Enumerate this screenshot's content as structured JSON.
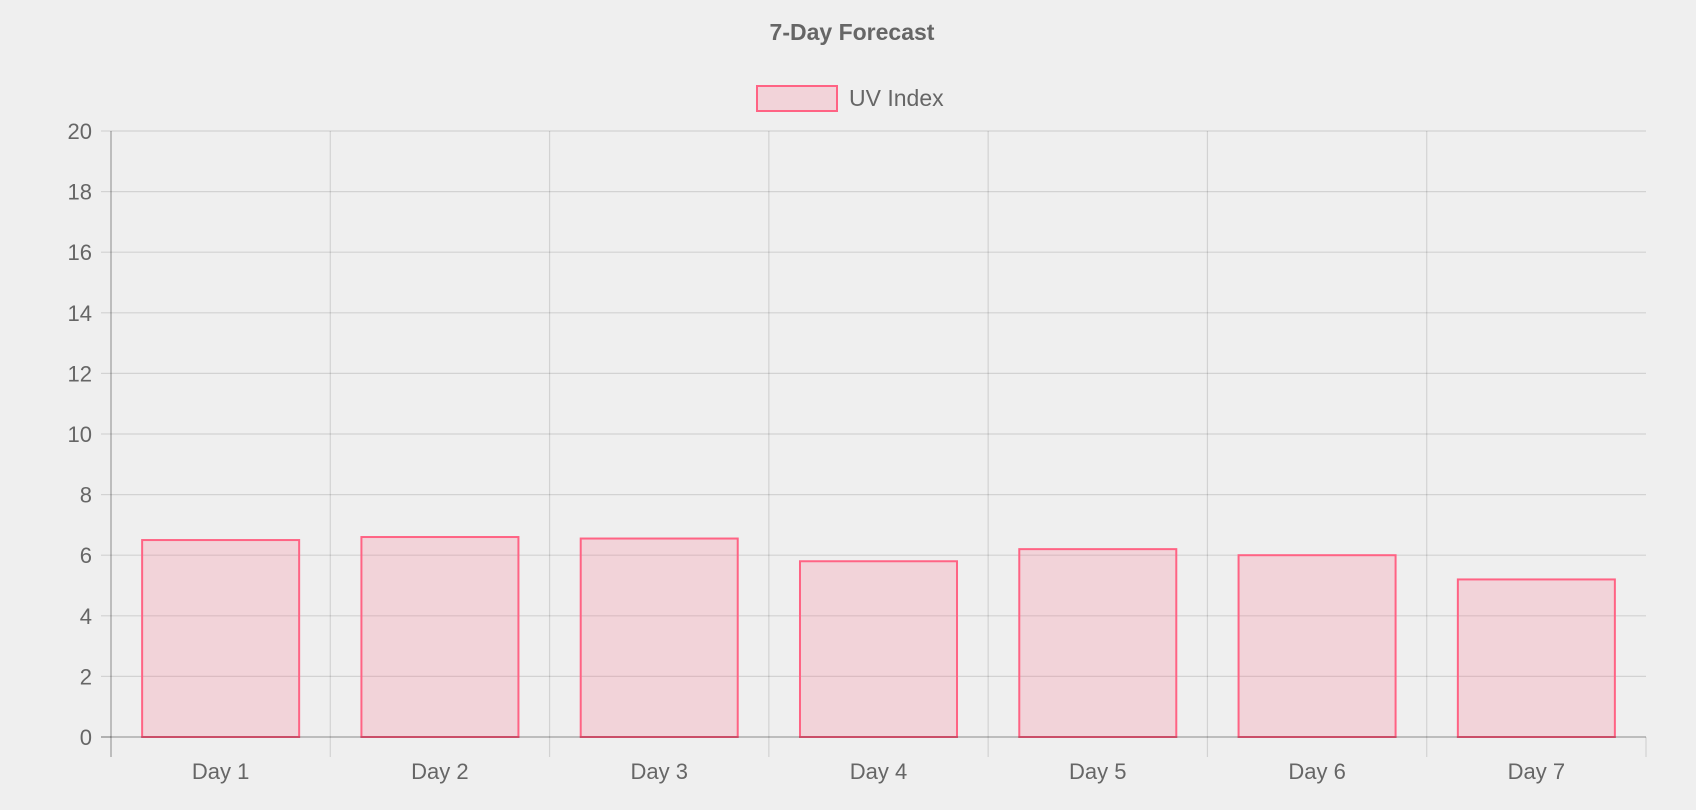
{
  "chart_data": {
    "type": "bar",
    "title": "7-Day Forecast",
    "categories": [
      "Day 1",
      "Day 2",
      "Day 3",
      "Day 4",
      "Day 5",
      "Day 6",
      "Day 7"
    ],
    "series": [
      {
        "name": "UV Index",
        "values": [
          6.5,
          6.6,
          6.55,
          5.8,
          6.2,
          6.0,
          5.2
        ],
        "fill_color": "rgba(255,99,132,0.2)",
        "border_color": "#ff6384"
      }
    ],
    "xlabel": "",
    "ylabel": "",
    "ylim": [
      0,
      20
    ],
    "y_ticks": [
      0,
      2,
      4,
      6,
      8,
      10,
      12,
      14,
      16,
      18,
      20
    ],
    "grid": true,
    "legend_position": "top-center"
  },
  "colors": {
    "background": "#efefef",
    "text": "#666666"
  }
}
